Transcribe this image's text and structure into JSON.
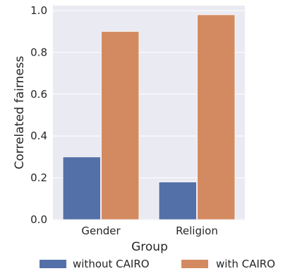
{
  "chart_data": {
    "type": "bar",
    "title": "",
    "xlabel": "Group",
    "ylabel": "Correlated fairness",
    "categories": [
      "Gender",
      "Religion"
    ],
    "series": [
      {
        "name": "without CAIRO",
        "values": [
          0.3,
          0.18
        ],
        "color": "#5470a8"
      },
      {
        "name": "with CAIRO",
        "values": [
          0.9,
          0.98
        ],
        "color": "#d48a60"
      }
    ],
    "ylim": [
      0,
      1.0
    ],
    "yticks": [
      "0.0",
      "0.2",
      "0.4",
      "0.6",
      "0.8",
      "1.0"
    ],
    "grid": true,
    "legend_position": "bottom"
  },
  "colors": {
    "plot_background": "#eaeaf2",
    "grid": "#ffffff"
  }
}
